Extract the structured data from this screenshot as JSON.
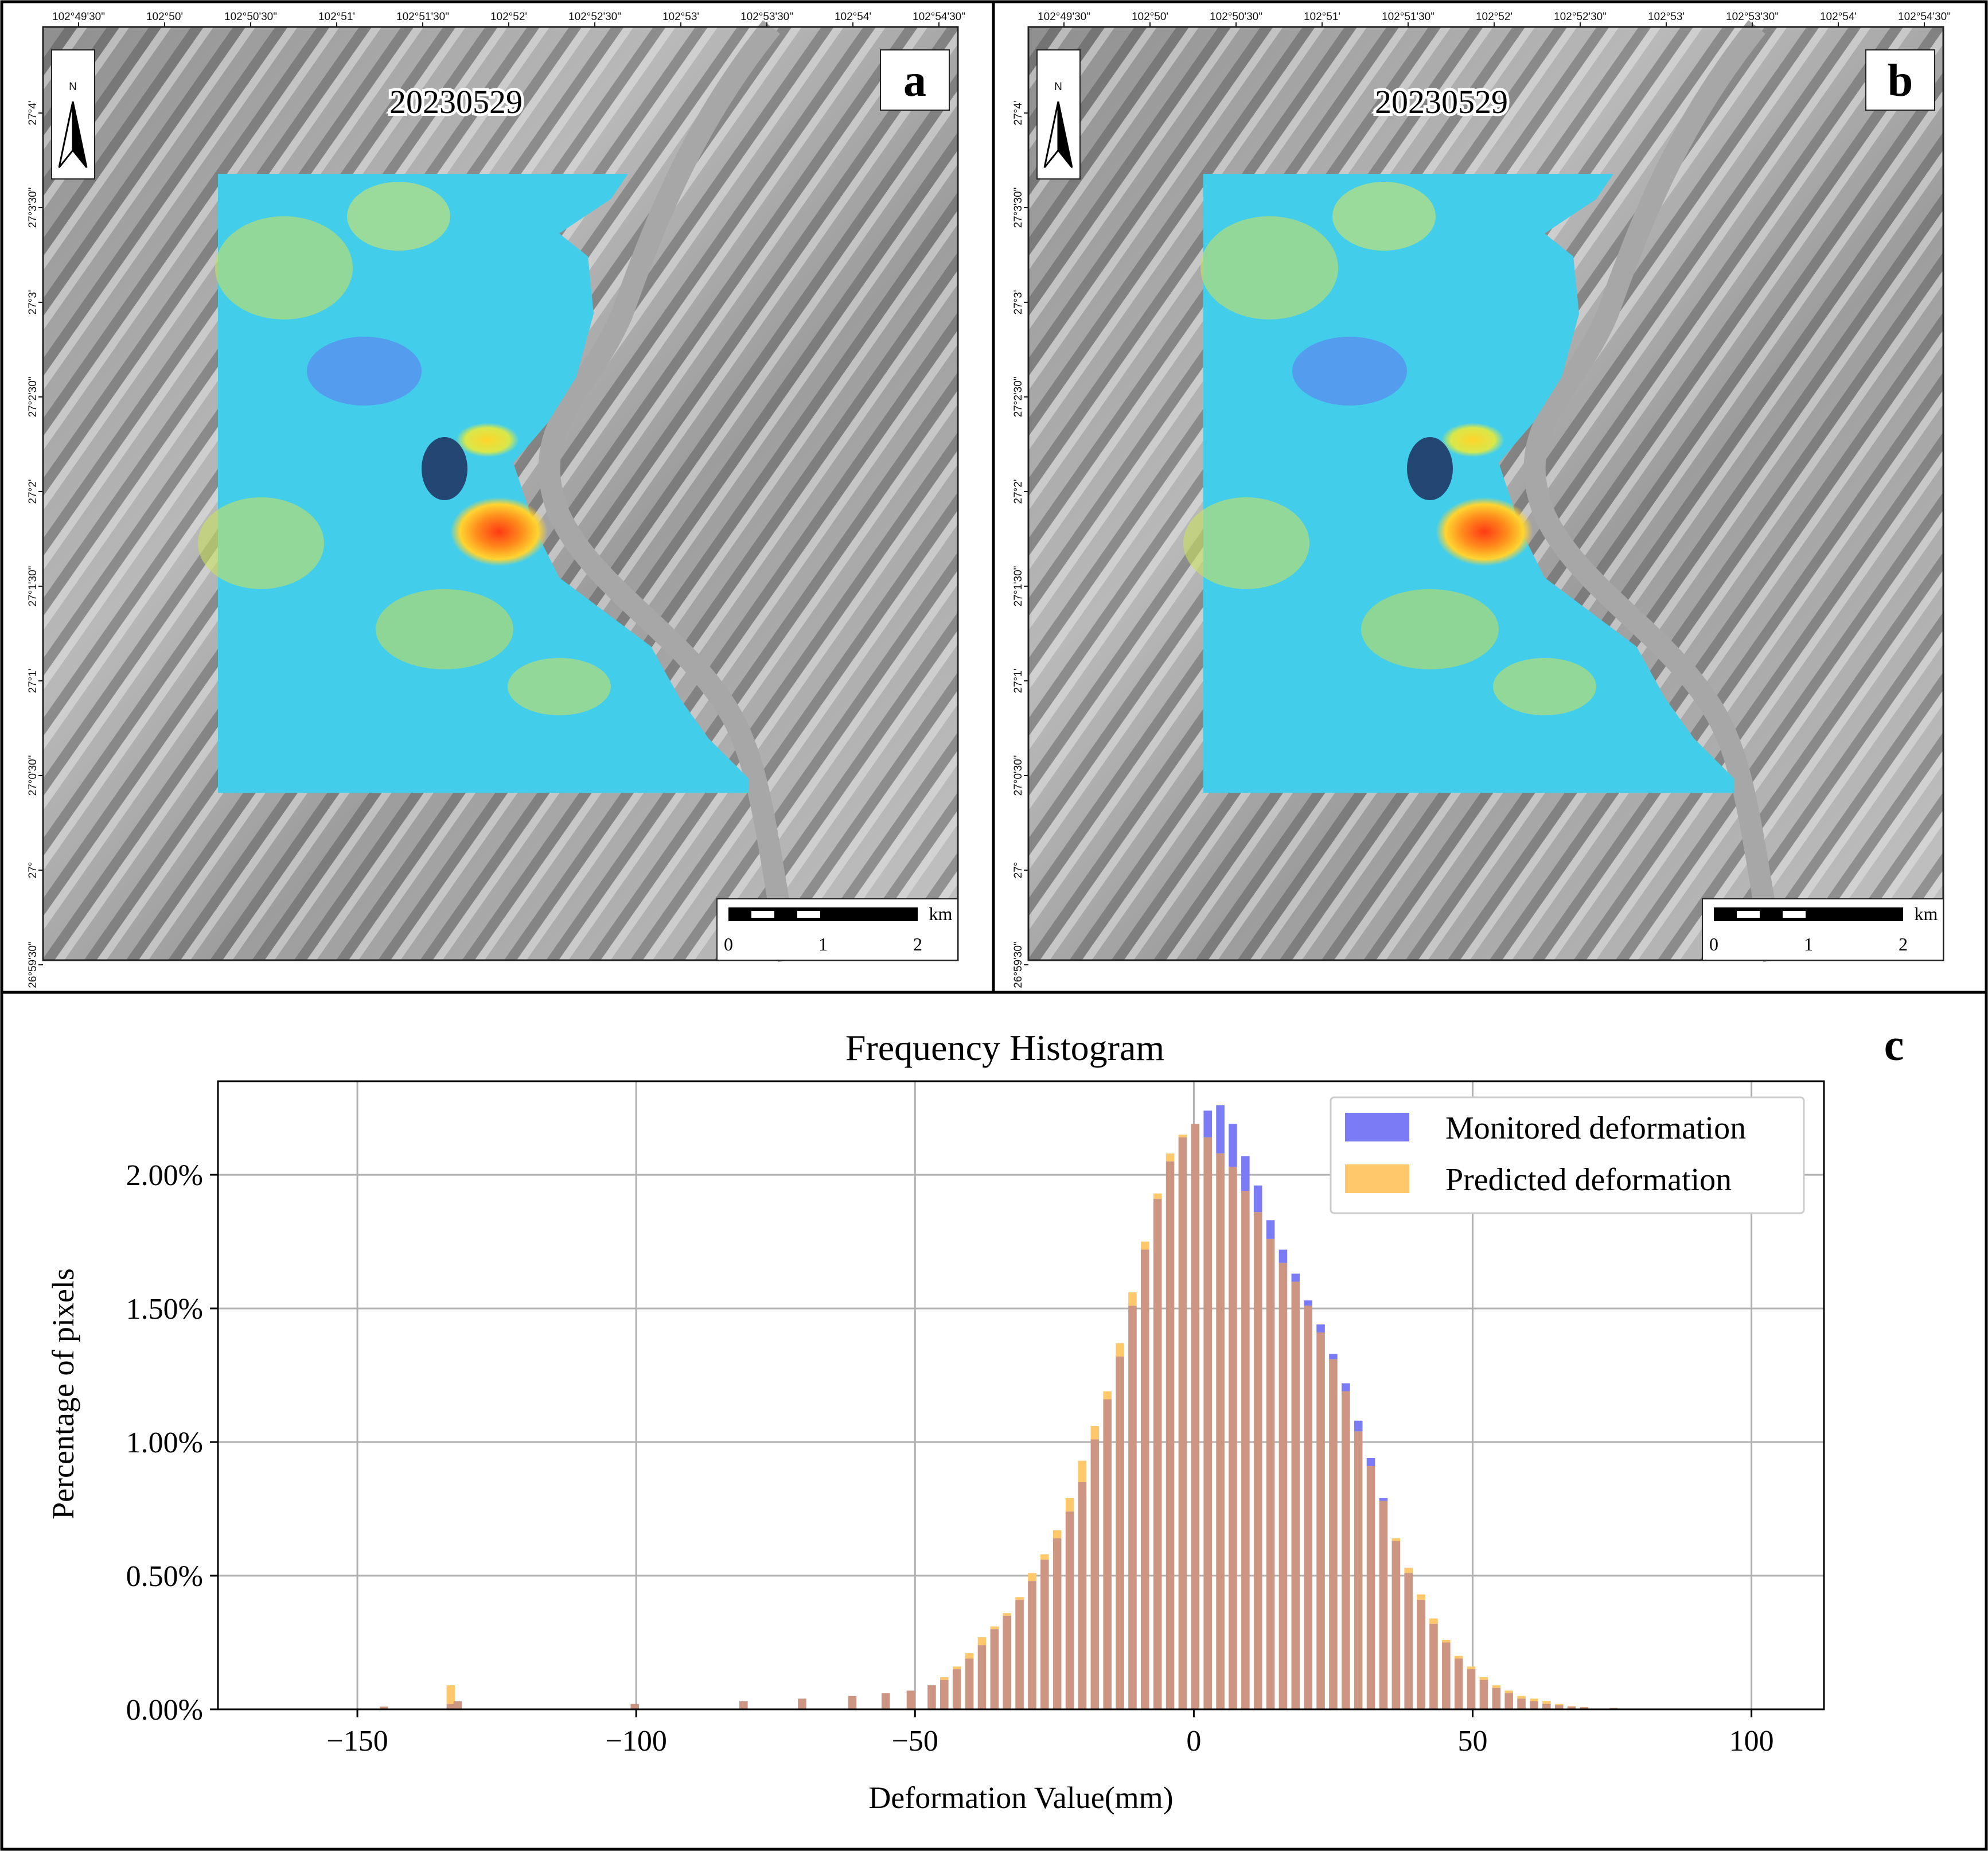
{
  "panels": [
    {
      "id": "a",
      "letter": "a",
      "date": "20230529",
      "north": "N",
      "scale_unit": "km",
      "scale_ticks": [
        "0",
        "1",
        "2"
      ],
      "lon_labels": [
        "102°49'30\"",
        "102°50'",
        "102°50'30\"",
        "102°51'",
        "102°51'30\"",
        "102°52'",
        "102°52'30\"",
        "102°53'",
        "102°53'30\"",
        "102°54'",
        "102°54'30\""
      ],
      "lat_labels": [
        "27°4'",
        "27°3'30\"",
        "27°3'",
        "27°2'30\"",
        "27°2'",
        "27°1'30\"",
        "27°1'",
        "27°0'30\"",
        "27°",
        "26°59'30\""
      ]
    },
    {
      "id": "b",
      "letter": "b",
      "date": "20230529",
      "north": "N",
      "scale_unit": "km",
      "scale_ticks": [
        "0",
        "1",
        "2"
      ],
      "lon_labels": [
        "102°49'30\"",
        "102°50'",
        "102°50'30\"",
        "102°51'",
        "102°51'30\"",
        "102°52'",
        "102°52'30\"",
        "102°53'",
        "102°53'30\"",
        "102°54'",
        "102°54'30\""
      ],
      "lat_labels": [
        "27°4'",
        "27°3'30\"",
        "27°3'",
        "27°2'30\"",
        "27°2'",
        "27°1'30\"",
        "27°1'",
        "27°0'30\"",
        "27°",
        "26°59'30\""
      ]
    }
  ],
  "chart_data": {
    "type": "bar",
    "letter": "c",
    "title": "Frequency Histogram",
    "xlabel": "Deformation Value(mm)",
    "ylabel": "Percentage of pixels",
    "xlim": [
      -175,
      113
    ],
    "ylim": [
      0,
      0.0235
    ],
    "xticks": [
      -150,
      -100,
      -50,
      0,
      50,
      100
    ],
    "xtick_labels": [
      "−150",
      "−100",
      "−50",
      "0",
      "50",
      "100"
    ],
    "yticks": [
      0,
      0.005,
      0.01,
      0.015,
      0.02
    ],
    "ytick_labels": [
      "0.00%",
      "0.50%",
      "1.00%",
      "1.50%",
      "2.00%"
    ],
    "grid": true,
    "legend_position": "top-right",
    "bin_width": 1.5,
    "series": [
      {
        "name": "Monitored deformation",
        "color": "#7b7bf5"
      },
      {
        "name": "Predicted deformation",
        "color": "#ffc86b"
      }
    ],
    "overlap_color": "#cc9683",
    "bins_x": [
      -145.25,
      -133.25,
      -132.0,
      -100.25,
      -80.75,
      -70.25,
      -61.25,
      -55.25,
      -50.75,
      -47.0,
      -44.75,
      -42.5,
      -40.25,
      -38.0,
      -35.75,
      -33.5,
      -31.25,
      -29.0,
      -26.75,
      -24.5,
      -22.25,
      -20.0,
      -17.75,
      -15.5,
      -13.25,
      -11.0,
      -8.75,
      -6.5,
      -4.25,
      -2.0,
      0.25,
      2.5,
      4.75,
      7.0,
      9.25,
      11.5,
      13.75,
      16.0,
      18.25,
      20.5,
      22.75,
      25.0,
      27.25,
      29.5,
      31.75,
      34.0,
      36.25,
      38.5,
      40.75,
      43.0,
      45.25,
      47.5,
      49.75,
      52.0,
      54.25,
      56.5,
      58.75,
      61.0,
      63.25,
      65.5,
      67.75,
      70.0,
      75.25,
      84.25
    ],
    "monitored": [
      0.0001,
      0.0002,
      0.0003,
      0.0002,
      0.0003,
      0.0004,
      0.0005,
      0.0006,
      0.0007,
      0.0009,
      0.0011,
      0.0015,
      0.0019,
      0.0024,
      0.003,
      0.0035,
      0.0041,
      0.0048,
      0.0056,
      0.0064,
      0.0074,
      0.0085,
      0.0101,
      0.0116,
      0.0132,
      0.0151,
      0.0172,
      0.0191,
      0.0205,
      0.0214,
      0.0219,
      0.0224,
      0.0226,
      0.0219,
      0.0207,
      0.0196,
      0.0183,
      0.0172,
      0.0163,
      0.0153,
      0.0144,
      0.0133,
      0.0122,
      0.0108,
      0.0094,
      0.0079,
      0.0063,
      0.0051,
      0.0041,
      0.0032,
      0.0025,
      0.0019,
      0.0015,
      0.0011,
      0.0008,
      0.0006,
      0.0004,
      0.0003,
      0.0002,
      0.00015,
      0.0001,
      8e-05,
      5e-05,
      3e-05
    ],
    "predicted": [
      0.0001,
      0.0009,
      0.0003,
      0.0002,
      0.0003,
      0.0004,
      0.0005,
      0.0006,
      0.0007,
      0.0009,
      0.0012,
      0.0016,
      0.0021,
      0.0027,
      0.0031,
      0.0036,
      0.0042,
      0.0051,
      0.0058,
      0.0067,
      0.0079,
      0.0093,
      0.0106,
      0.0119,
      0.0137,
      0.0156,
      0.0175,
      0.0193,
      0.0208,
      0.0215,
      0.0219,
      0.0214,
      0.0208,
      0.0203,
      0.0194,
      0.0186,
      0.0176,
      0.0167,
      0.016,
      0.0151,
      0.0141,
      0.0131,
      0.0119,
      0.0104,
      0.0091,
      0.0078,
      0.0064,
      0.0053,
      0.0043,
      0.0034,
      0.0026,
      0.002,
      0.0016,
      0.0012,
      0.0009,
      0.0007,
      0.0005,
      0.0004,
      0.0003,
      0.0002,
      0.00012,
      9e-05,
      5e-05,
      3e-05
    ]
  }
}
